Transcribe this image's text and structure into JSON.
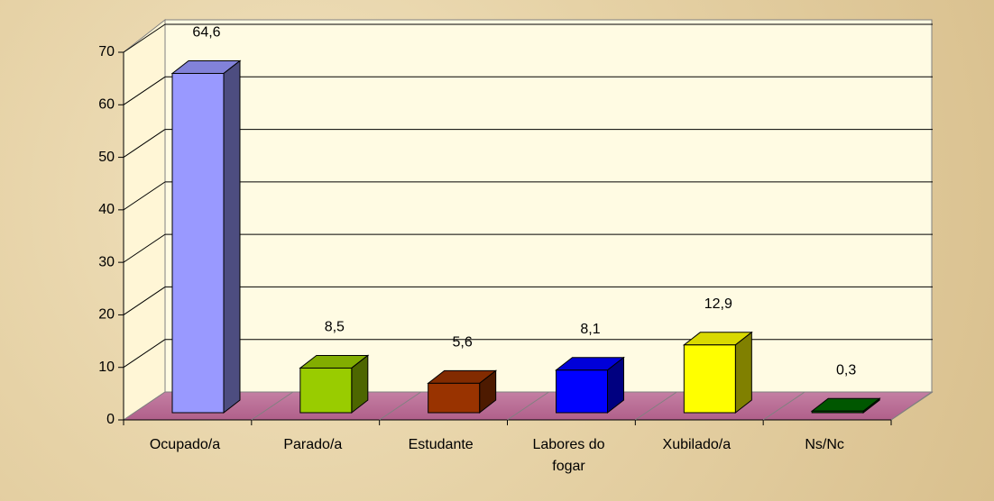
{
  "chart_data": {
    "type": "bar3d",
    "categories": [
      "Ocupado/a",
      "Parado/a",
      "Estudante",
      "Labores do fogar",
      "Xubilado/a",
      "Ns/Nc"
    ],
    "values": [
      64.6,
      8.5,
      5.6,
      8.1,
      12.9,
      0.3
    ],
    "value_labels": [
      "64,6",
      "8,5",
      "5,6",
      "8,1",
      "12,9",
      "0,3"
    ],
    "colors": [
      "#9999ff",
      "#99cc00",
      "#993300",
      "#0000ff",
      "#ffff00",
      "#006600"
    ],
    "ylim": [
      0,
      70
    ],
    "yticks": [
      0,
      10,
      20,
      30,
      40,
      50,
      60,
      70
    ],
    "grid": true
  }
}
